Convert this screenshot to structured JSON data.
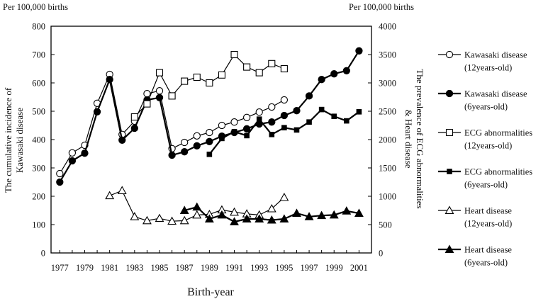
{
  "chart_data": {
    "type": "line",
    "xlabel": "Birth-year",
    "ylabel_left": "The cumulative incidence of Kawasaki disease",
    "ylabel_right": "The prevalence of ECG abnormalities & Heart disease",
    "unit_left": "Per 100,000 births",
    "unit_right": "Per 100,000 births",
    "xlim": [
      1976.3,
      2002
    ],
    "xticks": [
      "1977",
      "1979",
      "1981",
      "1983",
      "1985",
      "1987",
      "1989",
      "1991",
      "1993",
      "1995",
      "1997",
      "1999",
      "2001"
    ],
    "ylim_left": [
      0,
      800
    ],
    "yticks_left": [
      "0",
      "100",
      "200",
      "300",
      "400",
      "500",
      "600",
      "700",
      "800"
    ],
    "ylim_right": [
      0,
      4000
    ],
    "yticks_right": [
      "0",
      "500",
      "1000",
      "1500",
      "2000",
      "2500",
      "3000",
      "3500",
      "4000"
    ],
    "legend_position": "right",
    "series": [
      {
        "name": "Kawasaki disease",
        "name_sub": "(12years-old)",
        "axis": "left",
        "marker": "circle-open",
        "x": [
          1977,
          1978,
          1979,
          1980,
          1981,
          1982,
          1983,
          1984,
          1985,
          1986,
          1987,
          1988,
          1989,
          1990,
          1991,
          1992,
          1993,
          1994,
          1995
        ],
        "y": [
          280,
          353,
          380,
          528,
          630,
          418,
          465,
          562,
          572,
          368,
          390,
          413,
          425,
          450,
          462,
          478,
          497,
          515,
          540
        ]
      },
      {
        "name": "Kawasaki disease",
        "name_sub": "(6years-old)",
        "axis": "left",
        "marker": "circle-filled",
        "x": [
          1977,
          1978,
          1979,
          1980,
          1981,
          1982,
          1983,
          1984,
          1985,
          1986,
          1987,
          1988,
          1989,
          1990,
          1991,
          1992,
          1993,
          1994,
          1995,
          1996,
          1997,
          1998,
          1999,
          2000,
          2001
        ],
        "y": [
          250,
          325,
          352,
          498,
          612,
          398,
          440,
          540,
          548,
          345,
          357,
          378,
          393,
          412,
          425,
          438,
          455,
          462,
          485,
          502,
          554,
          612,
          632,
          643,
          713
        ]
      },
      {
        "name": "ECG abnormalities",
        "name_sub": "(12years-old)",
        "axis": "right",
        "marker": "square-open",
        "x": [
          1983,
          1984,
          1985,
          1986,
          1987,
          1988,
          1989,
          1990,
          1991,
          1992,
          1993,
          1994,
          1995
        ],
        "y": [
          2400,
          2630,
          3180,
          2770,
          3030,
          3100,
          3000,
          3140,
          3500,
          3280,
          3180,
          3340,
          3250
        ]
      },
      {
        "name": "ECG abnormalities",
        "name_sub": "(6years-old)",
        "axis": "right",
        "marker": "square-filled",
        "x": [
          1989,
          1990,
          1991,
          1992,
          1993,
          1994,
          1995,
          1996,
          1997,
          1998,
          1999,
          2000,
          2001
        ],
        "y": [
          1740,
          2020,
          2140,
          2070,
          2360,
          2090,
          2210,
          2170,
          2310,
          2530,
          2410,
          2330,
          2490
        ]
      },
      {
        "name": "Heart disease",
        "name_sub": "(12years-old)",
        "axis": "right",
        "marker": "triangle-open",
        "x": [
          1981,
          1982,
          1983,
          1984,
          1985,
          1986,
          1987,
          1988,
          1989,
          1990,
          1991,
          1992,
          1993,
          1994,
          1995
        ],
        "y": [
          1010,
          1100,
          640,
          570,
          610,
          560,
          570,
          670,
          680,
          760,
          720,
          690,
          670,
          780,
          980
        ]
      },
      {
        "name": "Heart disease",
        "name_sub": "(6years-old)",
        "axis": "right",
        "marker": "triangle-filled",
        "x": [
          1987,
          1988,
          1989,
          1990,
          1991,
          1992,
          1993,
          1994,
          1995,
          1996,
          1997,
          1998,
          1999,
          2000,
          2001
        ],
        "y": [
          750,
          810,
          600,
          670,
          550,
          600,
          600,
          580,
          600,
          700,
          640,
          660,
          670,
          740,
          700
        ]
      }
    ]
  }
}
